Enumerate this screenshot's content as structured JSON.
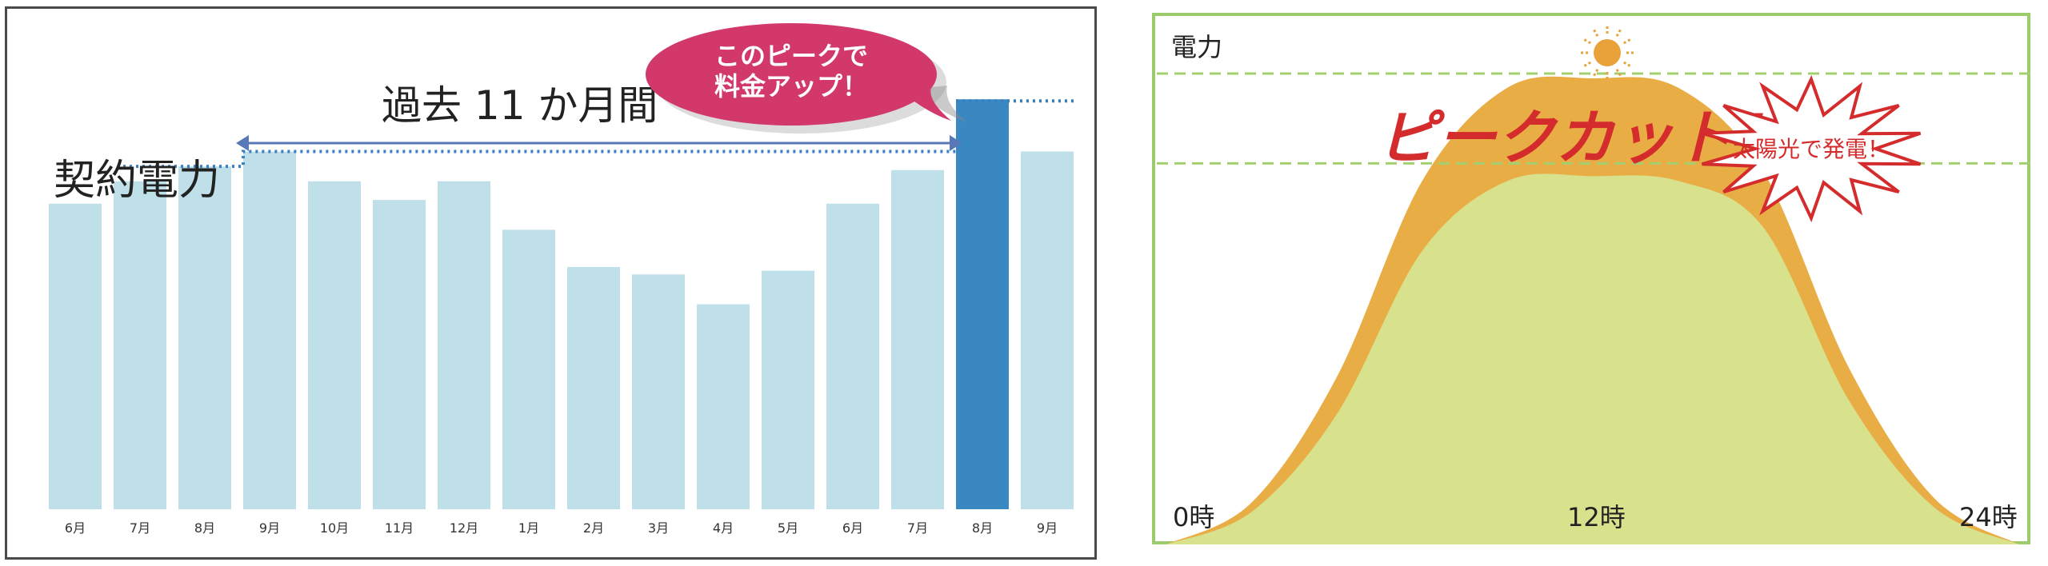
{
  "chart_data": [
    {
      "type": "bar",
      "categories": [
        "6月",
        "7月",
        "8月",
        "9月",
        "10月",
        "11月",
        "12月",
        "1月",
        "2月",
        "3月",
        "4月",
        "5月",
        "6月",
        "7月",
        "8月",
        "9月"
      ],
      "values": [
        82,
        88,
        92,
        96,
        88,
        83,
        88,
        75,
        65,
        63,
        55,
        64,
        82,
        91,
        110,
        96
      ],
      "highlight_index": 14,
      "ylim": [
        0,
        130
      ],
      "colors": {
        "bar": "#bfe0e9",
        "highlight": "#3a88c2",
        "arrow": "#5878b8",
        "dotted": "#3a7fc0"
      },
      "annotations": {
        "period_label": "過去 11 か月間",
        "contract_label": "契約電力",
        "callout_line1": "このピークで",
        "callout_line2": "料金アップ！"
      }
    },
    {
      "type": "area",
      "ylabel": "電力",
      "xticks": [
        "0時",
        "12時",
        "24時"
      ],
      "series": [
        {
          "color": "#e9ad45",
          "values": [
            0,
            9,
            36,
            78,
            98,
            100,
            98,
            80,
            38,
            10,
            0
          ]
        },
        {
          "color": "#d8e18c",
          "values": [
            0,
            7,
            28,
            63,
            78,
            79,
            78,
            68,
            31,
            8,
            0
          ]
        }
      ],
      "x": [
        0,
        2.4,
        4.8,
        7.2,
        9.6,
        12,
        14.4,
        16.8,
        19.2,
        21.6,
        24
      ],
      "colors": {
        "border": "#9ccb6b",
        "dashed": "#a3cf71",
        "sun": "#e9a23a",
        "peak_text": "#d42c2c",
        "star": "#d42c2c"
      },
      "annotations": {
        "peak_label": "ピークカット！",
        "star_label": "太陽光で発電！"
      }
    }
  ]
}
